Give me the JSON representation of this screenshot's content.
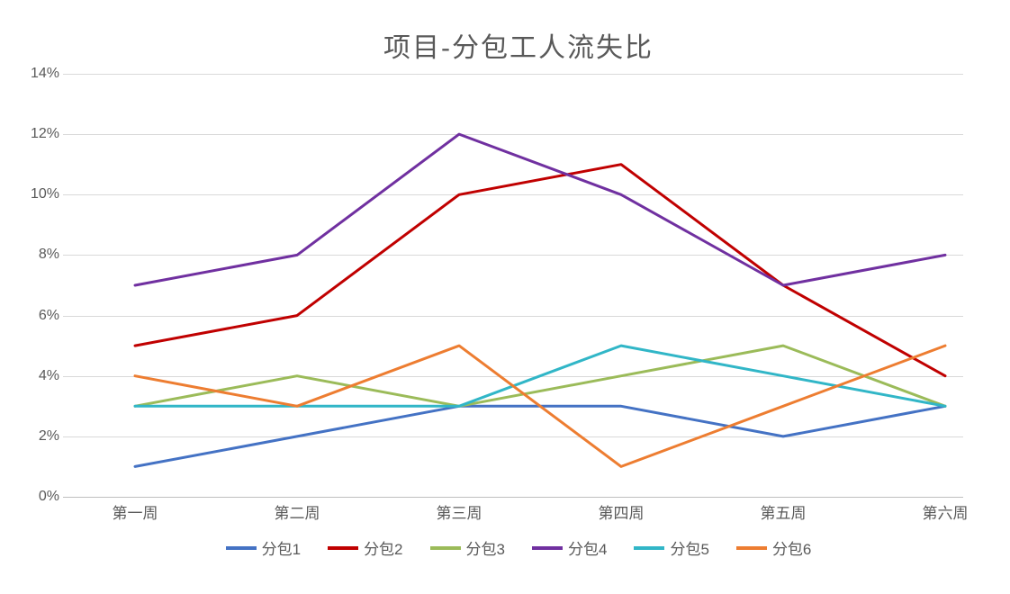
{
  "chart": {
    "type": "line",
    "title": "项目-分包工人流失比",
    "title_fontsize": 30,
    "title_color": "#595959",
    "background_color": "#ffffff",
    "grid_color": "#d9d9d9",
    "axis_line_color": "#bfbfbf",
    "label_color": "#595959",
    "label_fontsize": 16,
    "categories": [
      "第一周",
      "第二周",
      "第三周",
      "第四周",
      "第五周",
      "第六周"
    ],
    "ylim": [
      0,
      14
    ],
    "ytick_step": 2,
    "y_ticks": [
      "0%",
      "2%",
      "4%",
      "6%",
      "8%",
      "10%",
      "12%",
      "14%"
    ],
    "line_width": 3,
    "series": [
      {
        "name": "分包1",
        "color": "#4472c4",
        "values": [
          1,
          2,
          3,
          3,
          2,
          3
        ]
      },
      {
        "name": "分包2",
        "color": "#c00000",
        "values": [
          5,
          6,
          10,
          11,
          7,
          4
        ]
      },
      {
        "name": "分包3",
        "color": "#9bbb59",
        "values": [
          3,
          4,
          3,
          4,
          5,
          3
        ]
      },
      {
        "name": "分包4",
        "color": "#7030a0",
        "values": [
          7,
          8,
          12,
          10,
          7,
          8
        ]
      },
      {
        "name": "分包5",
        "color": "#31b6c7",
        "values": [
          3,
          3,
          3,
          5,
          4,
          3
        ]
      },
      {
        "name": "分包6",
        "color": "#ed7d31",
        "values": [
          4,
          3,
          5,
          1,
          3,
          5
        ]
      }
    ]
  }
}
